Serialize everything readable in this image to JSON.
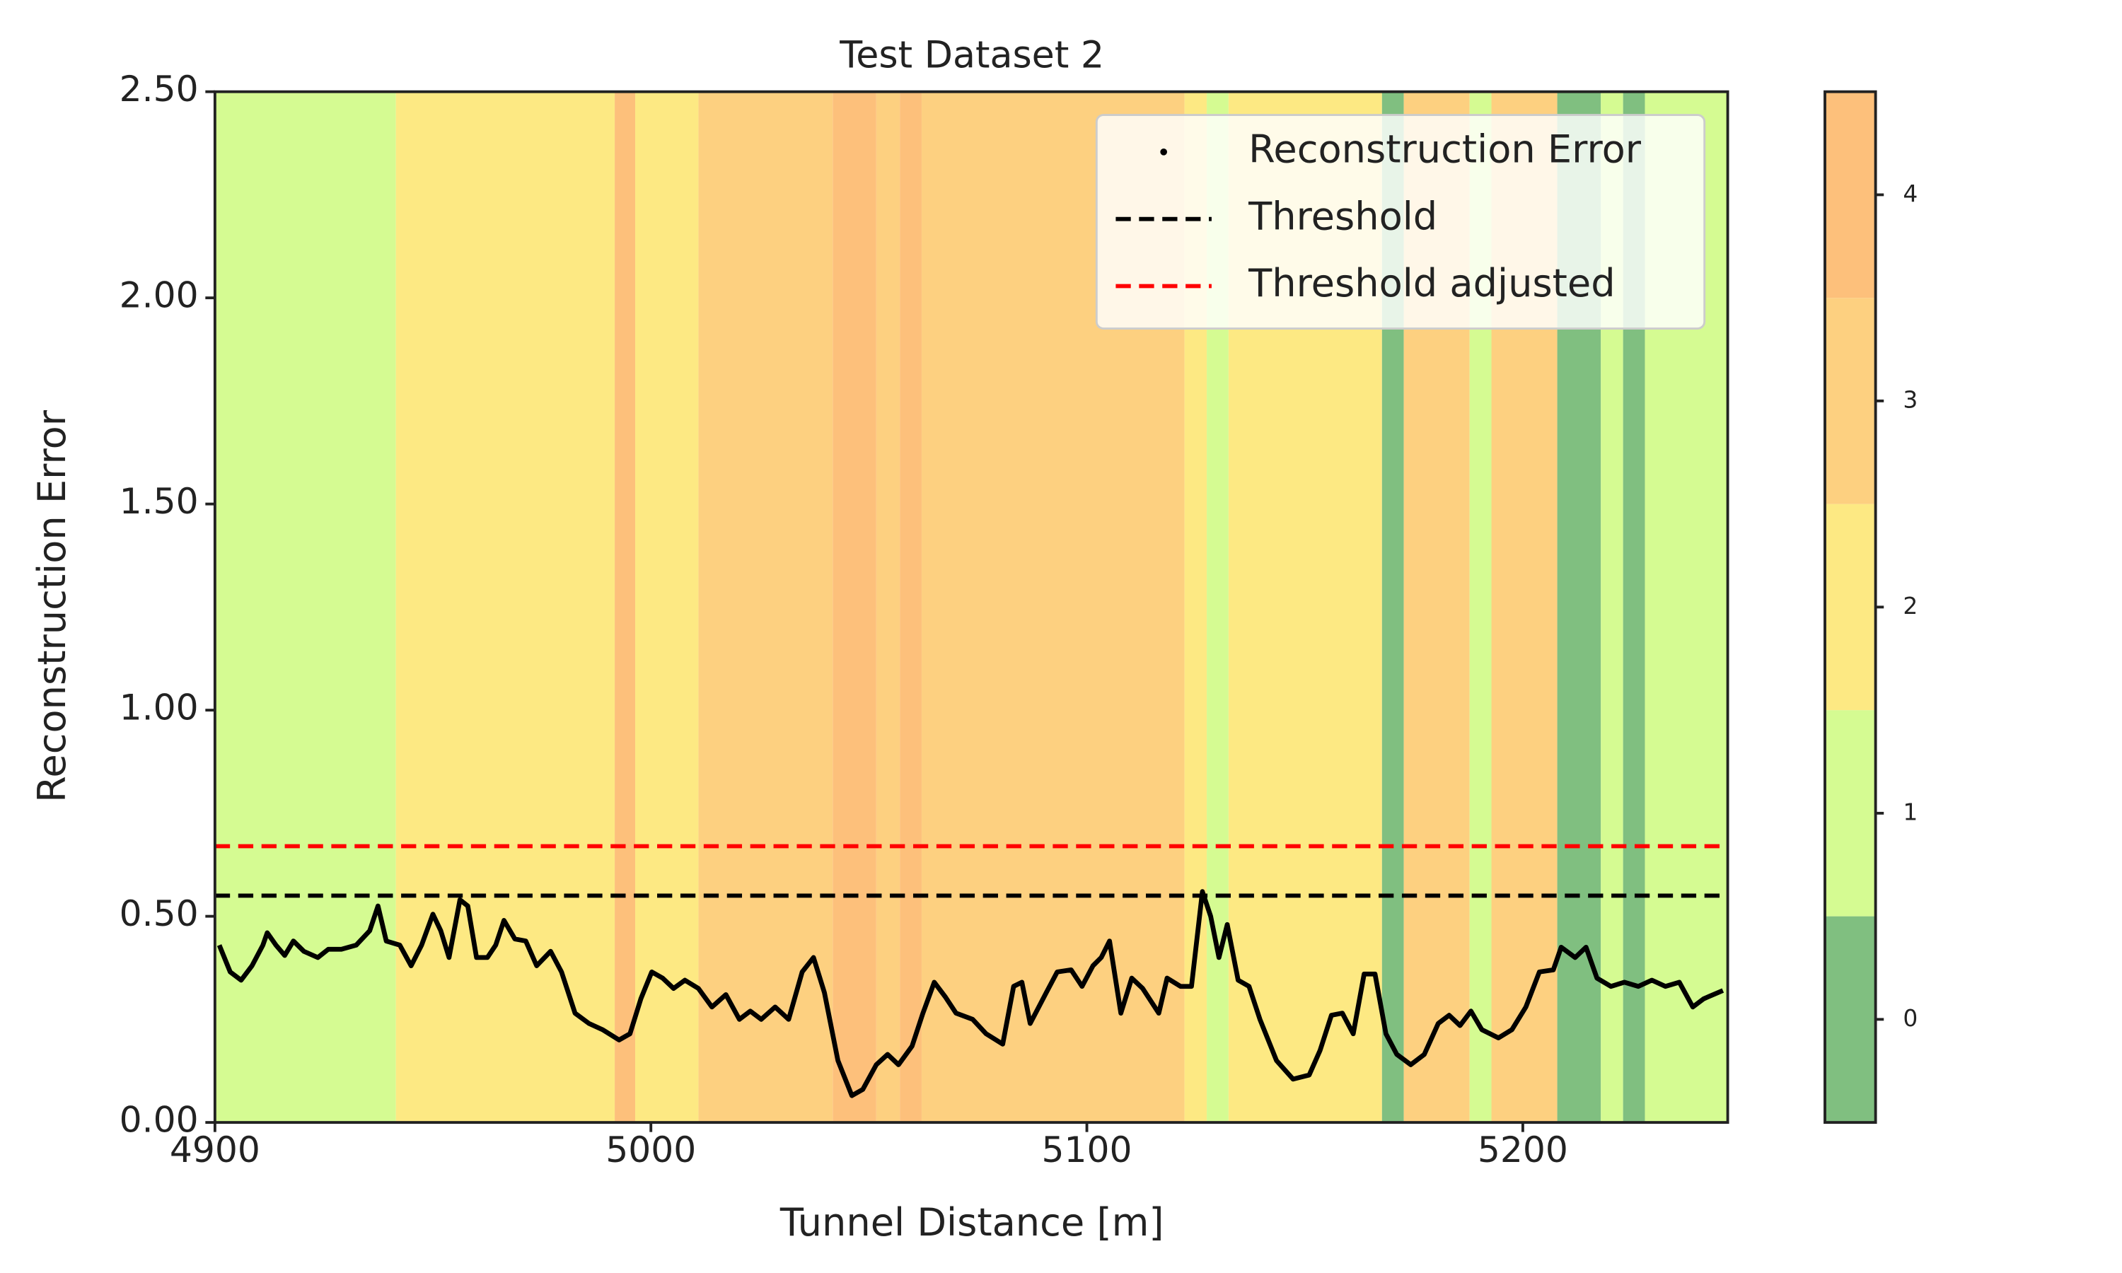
{
  "chart_data": {
    "type": "line",
    "title": "Test Dataset 2",
    "x_label": "Tunnel Distance [m]",
    "y_label": "Reconstruction Error",
    "xlim": [
      4900,
      5247
    ],
    "xticks": [
      4900,
      5000,
      5100,
      5200
    ],
    "ylim": [
      0,
      2.5
    ],
    "yticks": [
      {
        "value": 0,
        "label": "0.00"
      },
      {
        "value": 0.5,
        "label": "0.50"
      },
      {
        "value": 1,
        "label": "1.00"
      },
      {
        "value": 1.5,
        "label": "1.50"
      },
      {
        "value": 2,
        "label": "2.00"
      },
      {
        "value": 2.5,
        "label": "2.50"
      }
    ],
    "legend": "upper right",
    "x": [
      4901,
      4903.5,
      4906,
      4908.5,
      4911,
      4912,
      4914,
      4916,
      4918,
      4920.4,
      4923.6,
      4926,
      4929,
      4932.4,
      4935.5,
      4937.4,
      4939.3,
      4942.4,
      4945,
      4947.4,
      4950,
      4951.8,
      4953.7,
      4956.2,
      4958,
      4960,
      4962.5,
      4964.4,
      4966.3,
      4968.8,
      4971.3,
      4973.8,
      4977,
      4979.5,
      4982.6,
      4985.8,
      4988.9,
      4992.7,
      4995.2,
      4997.7,
      5000.2,
      5002.7,
      5005.2,
      5007.8,
      5010.9,
      5014,
      5017.2,
      5020.3,
      5022.8,
      5025.3,
      5028.5,
      5031.6,
      5034.7,
      5037.3,
      5039.8,
      5042.9,
      5046.1,
      5048.6,
      5051.7,
      5054.3,
      5056.8,
      5059.9,
      5062.4,
      5065,
      5067.5,
      5070,
      5073.8,
      5076.9,
      5080.7,
      5083.2,
      5085.1,
      5087,
      5090.7,
      5093.2,
      5096.4,
      5098.9,
      5101.4,
      5103.3,
      5105.2,
      5107.8,
      5110.3,
      5112.8,
      5116.5,
      5118.4,
      5121.5,
      5124,
      5126.5,
      5128.4,
      5130.3,
      5132.2,
      5134.7,
      5137.2,
      5139.7,
      5143.5,
      5147.3,
      5151,
      5153.5,
      5156.1,
      5158.6,
      5161.1,
      5163.6,
      5166.1,
      5168.6,
      5171.1,
      5174.3,
      5177.4,
      5180.6,
      5183.1,
      5185.6,
      5188.1,
      5190.6,
      5194.4,
      5197.5,
      5200.7,
      5203.8,
      5207,
      5208.8,
      5212,
      5214.5,
      5217,
      5220.2,
      5223.3,
      5226.5,
      5229.6,
      5232.7,
      5235.9,
      5239,
      5241.5,
      5245.9
    ],
    "series": [
      {
        "name": "Reconstruction Error",
        "color": "#000000",
        "values": [
          0.43,
          0.365,
          0.345,
          0.38,
          0.43,
          0.46,
          0.43,
          0.405,
          0.44,
          0.415,
          0.4,
          0.42,
          0.42,
          0.43,
          0.465,
          0.525,
          0.44,
          0.43,
          0.38,
          0.43,
          0.505,
          0.465,
          0.4,
          0.54,
          0.525,
          0.4,
          0.4,
          0.43,
          0.49,
          0.445,
          0.44,
          0.38,
          0.415,
          0.365,
          0.265,
          0.24,
          0.225,
          0.2,
          0.215,
          0.3,
          0.365,
          0.35,
          0.325,
          0.345,
          0.325,
          0.28,
          0.31,
          0.25,
          0.27,
          0.25,
          0.28,
          0.25,
          0.365,
          0.4,
          0.315,
          0.15,
          0.065,
          0.08,
          0.14,
          0.165,
          0.14,
          0.185,
          0.265,
          0.34,
          0.305,
          0.265,
          0.25,
          0.215,
          0.19,
          0.33,
          0.34,
          0.24,
          0.315,
          0.365,
          0.37,
          0.33,
          0.38,
          0.4,
          0.44,
          0.265,
          0.35,
          0.325,
          0.265,
          0.35,
          0.33,
          0.33,
          0.56,
          0.5,
          0.4,
          0.48,
          0.345,
          0.33,
          0.25,
          0.15,
          0.105,
          0.115,
          0.175,
          0.26,
          0.265,
          0.215,
          0.36,
          0.36,
          0.215,
          0.165,
          0.14,
          0.165,
          0.24,
          0.26,
          0.235,
          0.27,
          0.225,
          0.205,
          0.225,
          0.28,
          0.365,
          0.37,
          0.425,
          0.4,
          0.425,
          0.35,
          0.33,
          0.34,
          0.33,
          0.345,
          0.33,
          0.34,
          0.28,
          0.3,
          0.32
        ]
      }
    ],
    "hlines": [
      {
        "name": "Threshold",
        "value": 0.55,
        "color": "#000000"
      },
      {
        "name": "Threshold adjusted",
        "value": 0.67,
        "color": "#ff0000"
      }
    ],
    "bands": {
      "edges": [
        4900,
        4941.5,
        4991.7,
        4996.4,
        5010.9,
        5041.7,
        5051.7,
        5057.1,
        5062.1,
        5122.4,
        5127.5,
        5132.5,
        5167.7,
        5172.7,
        5187.8,
        5192.8,
        5207.9,
        5217.9,
        5223,
        5228,
        5247
      ],
      "classes": [
        1,
        2,
        4,
        2,
        3,
        4,
        3,
        4,
        3,
        2,
        1,
        2,
        0,
        3,
        1,
        3,
        0,
        1,
        0,
        1
      ]
    },
    "colorbar": {
      "ylim": [
        -0.5,
        4.5
      ],
      "ticks": [
        0,
        1,
        2,
        3,
        4
      ],
      "colors": [
        "#80bf80",
        "#d5fb92",
        "#fde983",
        "#fdd080",
        "#fdc07b"
      ]
    }
  }
}
